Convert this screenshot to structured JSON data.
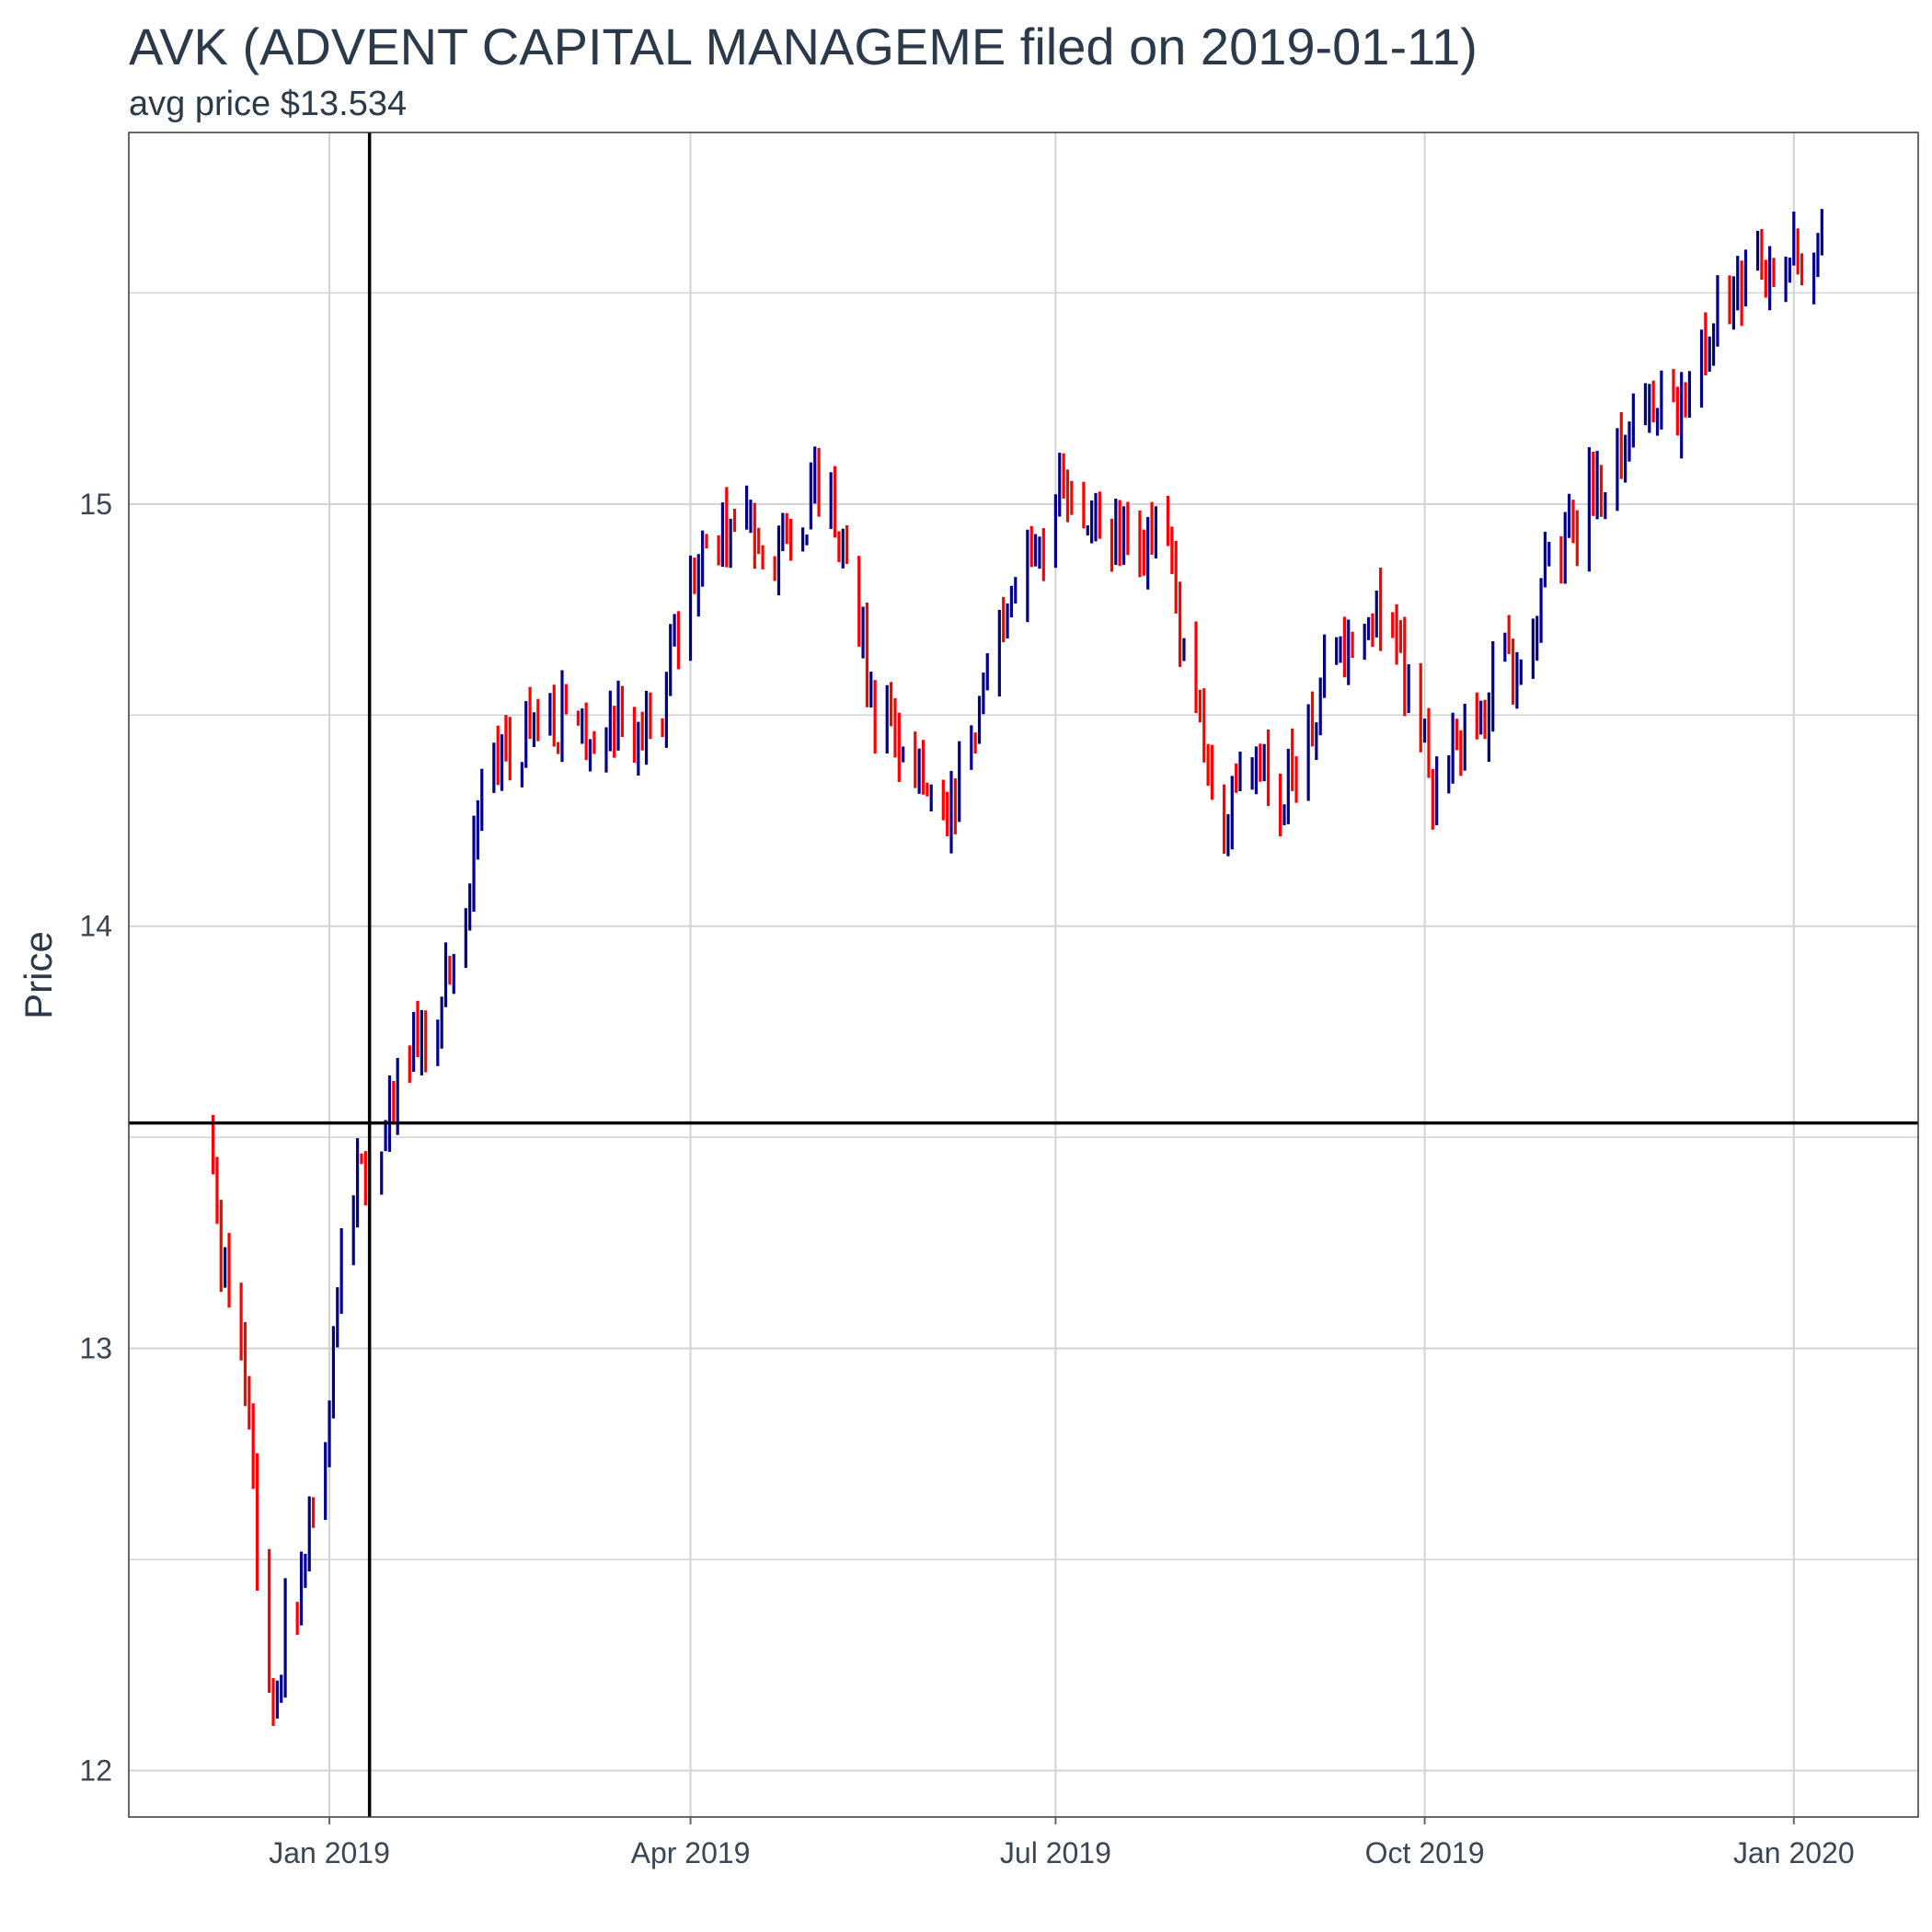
{
  "title": "AVK (ADVENT CAPITAL MANAGEME filed on 2019-01-11)",
  "subtitle": "avg price $13.534",
  "chart_data": {
    "type": "ohlc",
    "title": "AVK (ADVENT CAPITAL MANAGEME filed on 2019-01-11)",
    "subtitle": "avg price $13.534",
    "xlabel": "",
    "ylabel": "Price",
    "xlim": [
      "2018-11-12",
      "2020-02-01"
    ],
    "ylim": [
      11.89,
      15.88
    ],
    "x_ticks": [
      {
        "date": "2019-01-01",
        "label": "Jan 2019"
      },
      {
        "date": "2019-04-01",
        "label": "Apr 2019"
      },
      {
        "date": "2019-07-01",
        "label": "Jul 2019"
      },
      {
        "date": "2019-10-01",
        "label": "Oct 2019"
      },
      {
        "date": "2020-01-01",
        "label": "Jan 2020"
      }
    ],
    "y_ticks": [
      12,
      13,
      14,
      15
    ],
    "grid": true,
    "reference_lines": {
      "vertical_date": "2019-01-11",
      "horizontal_price": 13.534
    },
    "colors": {
      "up": "#00008b",
      "down": "#ff0000",
      "reference": "#000000",
      "grid": "#d3d3d3",
      "frame": "#2b3a4a"
    },
    "anchors": [
      [
        "2018-12-03",
        13.5
      ],
      [
        "2018-12-05",
        13.25
      ],
      [
        "2018-12-07",
        13.1
      ],
      [
        "2018-12-10",
        12.95
      ],
      [
        "2018-12-12",
        12.8
      ],
      [
        "2018-12-14",
        12.5
      ],
      [
        "2018-12-17",
        12.2
      ],
      [
        "2018-12-19",
        12.15
      ],
      [
        "2018-12-21",
        12.35
      ],
      [
        "2018-12-24",
        12.45
      ],
      [
        "2018-12-27",
        12.6
      ],
      [
        "2018-12-31",
        12.7
      ],
      [
        "2019-01-04",
        13.25
      ],
      [
        "2019-01-09",
        13.45
      ],
      [
        "2019-01-14",
        13.52
      ],
      [
        "2019-01-18",
        13.65
      ],
      [
        "2019-01-24",
        13.72
      ],
      [
        "2019-01-31",
        13.85
      ],
      [
        "2019-02-08",
        14.3
      ],
      [
        "2019-02-15",
        14.45
      ],
      [
        "2019-02-25",
        14.5
      ],
      [
        "2019-03-05",
        14.45
      ],
      [
        "2019-03-15",
        14.5
      ],
      [
        "2019-03-22",
        14.45
      ],
      [
        "2019-03-29",
        14.7
      ],
      [
        "2019-04-05",
        14.9
      ],
      [
        "2019-04-15",
        14.95
      ],
      [
        "2019-04-25",
        14.9
      ],
      [
        "2019-05-03",
        15.05
      ],
      [
        "2019-05-10",
        14.9
      ],
      [
        "2019-05-17",
        14.5
      ],
      [
        "2019-05-24",
        14.45
      ],
      [
        "2019-06-03",
        14.2
      ],
      [
        "2019-06-10",
        14.4
      ],
      [
        "2019-06-17",
        14.75
      ],
      [
        "2019-06-24",
        14.85
      ],
      [
        "2019-07-01",
        15.0
      ],
      [
        "2019-07-10",
        14.95
      ],
      [
        "2019-07-19",
        14.9
      ],
      [
        "2019-07-29",
        14.9
      ],
      [
        "2019-08-06",
        14.45
      ],
      [
        "2019-08-13",
        14.25
      ],
      [
        "2019-08-20",
        14.4
      ],
      [
        "2019-08-27",
        14.3
      ],
      [
        "2019-09-05",
        14.55
      ],
      [
        "2019-09-12",
        14.7
      ],
      [
        "2019-09-19",
        14.75
      ],
      [
        "2019-09-26",
        14.6
      ],
      [
        "2019-10-03",
        14.35
      ],
      [
        "2019-10-10",
        14.45
      ],
      [
        "2019-10-18",
        14.55
      ],
      [
        "2019-10-28",
        14.75
      ],
      [
        "2019-11-05",
        14.9
      ],
      [
        "2019-11-12",
        15.05
      ],
      [
        "2019-11-19",
        15.15
      ],
      [
        "2019-11-26",
        15.25
      ],
      [
        "2019-12-04",
        15.2
      ],
      [
        "2019-12-11",
        15.45
      ],
      [
        "2019-12-18",
        15.5
      ],
      [
        "2019-12-27",
        15.55
      ],
      [
        "2020-01-08",
        15.62
      ]
    ]
  }
}
